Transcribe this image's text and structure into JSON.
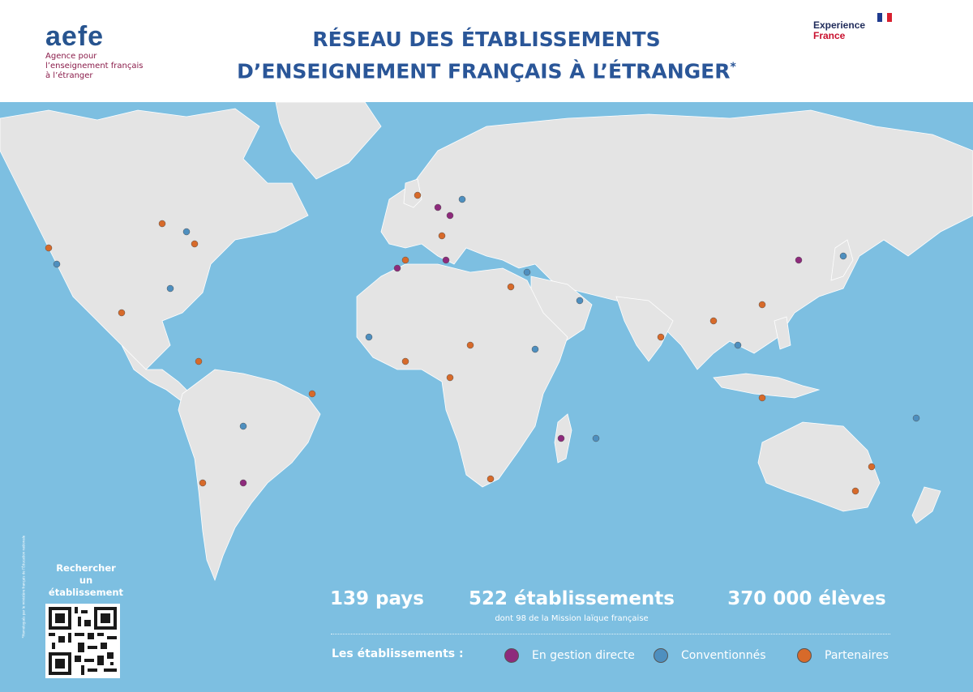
{
  "header": {
    "logo_word": "aefe",
    "logo_subtitle": [
      "Agence pour",
      "l’enseignement français",
      "à l’étranger"
    ],
    "title_line1": "RÉSEAU DES ÉTABLISSEMENTS",
    "title_line2": "D’ENSEIGNEMENT FRANÇAIS À L’ÉTRANGER",
    "title_mark": "*",
    "partner_logo_line1": "Experience",
    "partner_logo_line2": "France"
  },
  "side_note": "*Homologués par le ministère français de l’Éducation nationale",
  "qr": {
    "label_line1": "Rechercher",
    "label_line2": "un établissement"
  },
  "stats": {
    "countries": "139 pays",
    "schools": "522 établissements",
    "schools_note": "dont 98 de la Mission laïque française",
    "students": "370 000 élèves"
  },
  "legend": {
    "title": "Les établissements :",
    "items": [
      {
        "label": "En gestion directe",
        "color": "#8e2a7c"
      },
      {
        "label": "Conventionnés",
        "color": "#4e8fbf"
      },
      {
        "label": "Partenaires",
        "color": "#d76a2a"
      }
    ]
  },
  "colors": {
    "ocean": "#7dbfe1",
    "land": "#e4e4e4",
    "title": "#2a5698",
    "brand_red": "#c8102e",
    "brand_navy": "#1f2b5a"
  }
}
